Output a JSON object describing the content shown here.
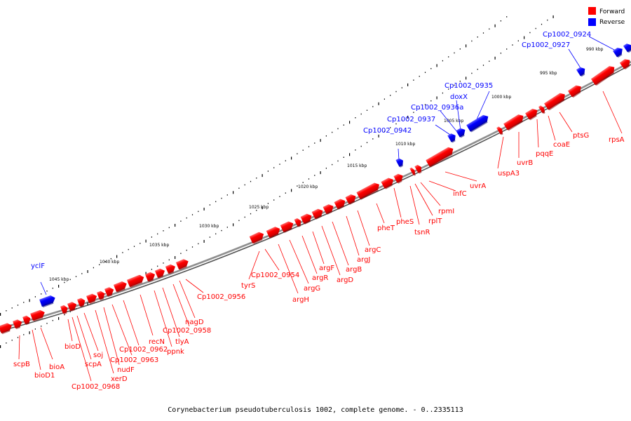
{
  "caption": "Corynebacterium pseudotuberculosis 1002, complete genome. - 0..2335113",
  "legend": [
    {
      "label": "Forward",
      "color": "#ff0000"
    },
    {
      "label": "Reverse",
      "color": "#0000ff"
    }
  ],
  "scale_labels": [
    "990 kbp",
    "995 kbp",
    "1000 kbp",
    "1005 kbp",
    "1010 kbp",
    "1015 kbp",
    "1020 kbp",
    "1025 kbp",
    "1030 kbp",
    "1035 kbp",
    "1040 kbp",
    "1045 kbp"
  ],
  "forward_genes": [
    "rpsA",
    "ptsG",
    "coaE",
    "pqqE",
    "uvrB",
    "uspA3",
    "uvrA",
    "infC",
    "rpmI",
    "rplT",
    "tsnR",
    "pheS",
    "pheT",
    "argC",
    "argJ",
    "argB",
    "argD",
    "argF",
    "argR",
    "argG",
    "argH",
    "Cp1002_0954",
    "tyrS",
    "Cp1002_0956",
    "nagD",
    "Cp1002_0958",
    "tlyA",
    "ppnk",
    "recN",
    "Cp1002_0962",
    "Cp1002_0963",
    "nudF",
    "xerD",
    "soj",
    "scpA",
    "Cp1002_0968",
    "bioD",
    "bioA",
    "bioD1",
    "scpB"
  ],
  "reverse_genes": [
    "Cp1002_0924",
    "Cp1002_0927",
    "Cp1002_0935",
    "doxX",
    "Cp1002_0936a",
    "Cp1002_0937",
    "Cp1002_0942",
    "yclF"
  ]
}
